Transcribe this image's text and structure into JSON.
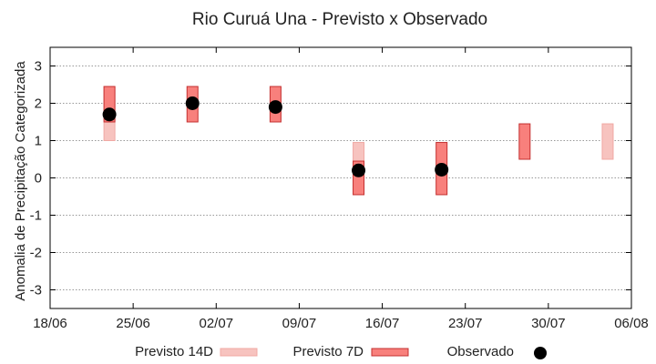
{
  "chart_data": {
    "type": "range-bar-scatter",
    "title": "Rio Curuá Una - Previsto x Observado",
    "xlabel": "",
    "ylabel": "Anomalia de Precipitação Categorizada",
    "x_ticks": [
      "18/06",
      "25/06",
      "02/07",
      "09/07",
      "16/07",
      "23/07",
      "30/07",
      "06/08"
    ],
    "x_range_days": [
      0,
      49
    ],
    "ylim": [
      -3.5,
      3.5
    ],
    "y_ticks": [
      3,
      2,
      1,
      0,
      -1,
      -2,
      -3
    ],
    "grid": "horizontal-dotted",
    "legend_position": "bottom",
    "series": [
      {
        "name": "Previsto 14D",
        "kind": "range",
        "color": "#f7c3bf",
        "stroke": "#f0a8a3",
        "points": [
          {
            "x": "23/06",
            "low": 1.0,
            "high": 2.45
          },
          {
            "x": "14/07",
            "low": -0.45,
            "high": 0.95
          },
          {
            "x": "04/08",
            "low": 0.5,
            "high": 1.45
          }
        ]
      },
      {
        "name": "Previsto 7D",
        "kind": "range",
        "color": "#f8807c",
        "stroke": "#c43030",
        "points": [
          {
            "x": "23/06",
            "low": 1.5,
            "high": 2.45
          },
          {
            "x": "30/06",
            "low": 1.5,
            "high": 2.45
          },
          {
            "x": "07/07",
            "low": 1.5,
            "high": 2.45
          },
          {
            "x": "14/07",
            "low": -0.45,
            "high": 0.45
          },
          {
            "x": "21/07",
            "low": -0.45,
            "high": 0.95
          },
          {
            "x": "28/07",
            "low": 0.5,
            "high": 1.45
          }
        ]
      },
      {
        "name": "Observado",
        "kind": "point",
        "color": "#000000",
        "points": [
          {
            "x": "23/06",
            "y": 1.7
          },
          {
            "x": "30/06",
            "y": 2.0
          },
          {
            "x": "07/07",
            "y": 1.9
          },
          {
            "x": "14/07",
            "y": 0.2
          },
          {
            "x": "21/07",
            "y": 0.22
          }
        ]
      }
    ]
  }
}
